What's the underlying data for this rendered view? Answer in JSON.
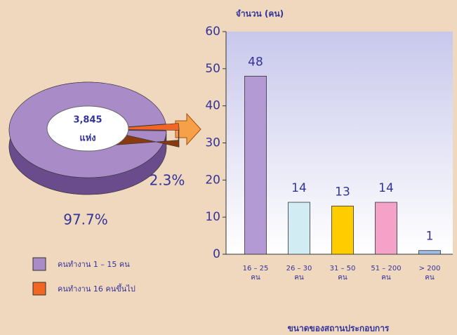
{
  "chart_data": [
    {
      "type": "pie",
      "series": [
        {
          "name": "คนทำงาน 1 – 15 คน",
          "color": "#a98bc8",
          "values": [
            97.7
          ],
          "value_labels": [
            "97.7%"
          ]
        },
        {
          "name": "คนทำงาน 16 คนขึ้นไป",
          "color": "#f26522",
          "values": [
            2.3
          ],
          "value_labels": [
            "2.3%"
          ]
        }
      ],
      "annotations": [
        "3,845",
        "แห่ง"
      ]
    },
    {
      "type": "bar",
      "y_label": "จำนวน (คน)",
      "x_label": "ขนาดของสถานประกอบการ",
      "categories": [
        [
          "16 – 25",
          "คน"
        ],
        [
          "26 – 30",
          "คน"
        ],
        [
          "31 – 50",
          "คน"
        ],
        [
          "51 – 200",
          "คน"
        ],
        [
          "> 200",
          "คน"
        ]
      ],
      "values": [
        48,
        14,
        13,
        14,
        1
      ],
      "colors": [
        "#b39ad4",
        "#d2ecf4",
        "#ffcc00",
        "#f4a2c8",
        "#9dbde8"
      ],
      "ylim": [
        0,
        60
      ],
      "yticks": [
        0,
        10,
        20,
        30,
        40,
        50,
        60
      ]
    }
  ]
}
